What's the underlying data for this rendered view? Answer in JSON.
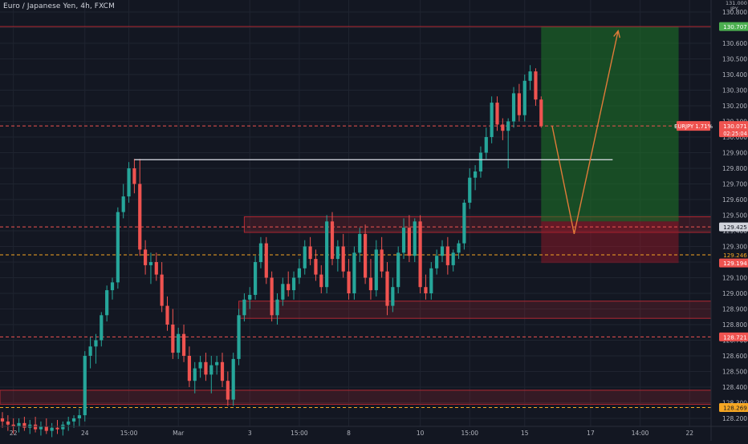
{
  "header": {
    "symbol_title": "Euro / Japanese Yen, 4h, FXCM",
    "currency": "JPY",
    "axis_top_label": "131.000"
  },
  "colors": {
    "background": "#131722",
    "grid": "#1f2430",
    "up": "#26a69a",
    "down": "#ef5350",
    "zone_fill": "rgba(178,40,51,0.22)",
    "zone_stroke": "#b22833",
    "projection": "#e07b39",
    "profit_fill": "rgba(30,120,40,0.55)",
    "loss_fill": "rgba(160,25,40,0.45)",
    "axis_text": "#b2b5be",
    "price_badge": "#ef5350",
    "target_badge": "#4caf50",
    "orange_badge": "#f5a623"
  },
  "chart_data": {
    "type": "candlestick",
    "title": "Euro / Japanese Yen, 4h, FXCM",
    "ylim": [
      128.15,
      131.05
    ],
    "y_ticks": [
      "128.200",
      "128.300",
      "128.400",
      "128.500",
      "128.600",
      "128.700",
      "128.800",
      "128.900",
      "129.000",
      "129.100",
      "129.200",
      "129.300",
      "129.400",
      "129.500",
      "129.600",
      "129.700",
      "129.800",
      "129.900",
      "130.000",
      "130.100",
      "130.200",
      "130.300",
      "130.400",
      "130.500",
      "130.600",
      "130.700",
      "130.800",
      "130.900"
    ],
    "x_ticks": [
      {
        "label": "22",
        "i": 2
      },
      {
        "label": "24",
        "i": 15
      },
      {
        "label": "15:00",
        "i": 23
      },
      {
        "label": "Mar",
        "i": 32
      },
      {
        "label": "3",
        "i": 45
      },
      {
        "label": "15:00",
        "i": 54
      },
      {
        "label": "8",
        "i": 63
      },
      {
        "label": "10",
        "i": 76
      },
      {
        "label": "15:00",
        "i": 85
      },
      {
        "label": "15",
        "i": 95
      },
      {
        "label": "17",
        "i": 107
      },
      {
        "label": "14:00",
        "i": 116
      },
      {
        "label": "22",
        "i": 125
      }
    ],
    "x_count": 130,
    "candles": [
      {
        "o": 128.2,
        "h": 128.24,
        "l": 128.14,
        "c": 128.18
      },
      {
        "o": 128.18,
        "h": 128.22,
        "l": 128.12,
        "c": 128.16
      },
      {
        "o": 128.16,
        "h": 128.2,
        "l": 128.1,
        "c": 128.15
      },
      {
        "o": 128.15,
        "h": 128.2,
        "l": 128.11,
        "c": 128.17
      },
      {
        "o": 128.17,
        "h": 128.21,
        "l": 128.12,
        "c": 128.14
      },
      {
        "o": 128.14,
        "h": 128.19,
        "l": 128.1,
        "c": 128.16
      },
      {
        "o": 128.16,
        "h": 128.21,
        "l": 128.11,
        "c": 128.13
      },
      {
        "o": 128.13,
        "h": 128.18,
        "l": 128.09,
        "c": 128.15
      },
      {
        "o": 128.15,
        "h": 128.2,
        "l": 128.1,
        "c": 128.12
      },
      {
        "o": 128.12,
        "h": 128.17,
        "l": 128.08,
        "c": 128.14
      },
      {
        "o": 128.14,
        "h": 128.19,
        "l": 128.1,
        "c": 128.13
      },
      {
        "o": 128.13,
        "h": 128.18,
        "l": 128.09,
        "c": 128.16
      },
      {
        "o": 128.16,
        "h": 128.21,
        "l": 128.12,
        "c": 128.18
      },
      {
        "o": 128.18,
        "h": 128.22,
        "l": 128.14,
        "c": 128.2
      },
      {
        "o": 128.2,
        "h": 128.26,
        "l": 128.15,
        "c": 128.22
      },
      {
        "o": 128.22,
        "h": 128.63,
        "l": 128.18,
        "c": 128.6
      },
      {
        "o": 128.6,
        "h": 128.72,
        "l": 128.52,
        "c": 128.66
      },
      {
        "o": 128.66,
        "h": 128.74,
        "l": 128.55,
        "c": 128.7
      },
      {
        "o": 128.7,
        "h": 128.88,
        "l": 128.66,
        "c": 128.86
      },
      {
        "o": 128.86,
        "h": 129.05,
        "l": 128.82,
        "c": 129.02
      },
      {
        "o": 129.02,
        "h": 129.1,
        "l": 128.96,
        "c": 129.07
      },
      {
        "o": 129.07,
        "h": 129.55,
        "l": 129.03,
        "c": 129.52
      },
      {
        "o": 129.52,
        "h": 129.7,
        "l": 129.48,
        "c": 129.62
      },
      {
        "o": 129.62,
        "h": 129.84,
        "l": 129.58,
        "c": 129.8
      },
      {
        "o": 129.8,
        "h": 129.86,
        "l": 129.64,
        "c": 129.7
      },
      {
        "o": 129.7,
        "h": 129.86,
        "l": 129.24,
        "c": 129.28
      },
      {
        "o": 129.28,
        "h": 129.34,
        "l": 129.12,
        "c": 129.18
      },
      {
        "o": 129.18,
        "h": 129.26,
        "l": 129.06,
        "c": 129.2
      },
      {
        "o": 129.2,
        "h": 129.26,
        "l": 129.08,
        "c": 129.12
      },
      {
        "o": 129.12,
        "h": 129.2,
        "l": 128.88,
        "c": 128.92
      },
      {
        "o": 128.92,
        "h": 128.98,
        "l": 128.76,
        "c": 128.8
      },
      {
        "o": 128.8,
        "h": 128.9,
        "l": 128.58,
        "c": 128.62
      },
      {
        "o": 128.62,
        "h": 128.78,
        "l": 128.58,
        "c": 128.74
      },
      {
        "o": 128.74,
        "h": 128.8,
        "l": 128.56,
        "c": 128.6
      },
      {
        "o": 128.6,
        "h": 128.66,
        "l": 128.4,
        "c": 128.44
      },
      {
        "o": 128.44,
        "h": 128.56,
        "l": 128.36,
        "c": 128.52
      },
      {
        "o": 128.52,
        "h": 128.6,
        "l": 128.46,
        "c": 128.56
      },
      {
        "o": 128.56,
        "h": 128.62,
        "l": 128.44,
        "c": 128.48
      },
      {
        "o": 128.48,
        "h": 128.6,
        "l": 128.36,
        "c": 128.54
      },
      {
        "o": 128.54,
        "h": 128.6,
        "l": 128.48,
        "c": 128.56
      },
      {
        "o": 128.56,
        "h": 128.62,
        "l": 128.4,
        "c": 128.44
      },
      {
        "o": 128.44,
        "h": 128.5,
        "l": 128.28,
        "c": 128.32
      },
      {
        "o": 128.32,
        "h": 128.62,
        "l": 128.28,
        "c": 128.58
      },
      {
        "o": 128.58,
        "h": 128.9,
        "l": 128.54,
        "c": 128.86
      },
      {
        "o": 128.86,
        "h": 129.0,
        "l": 128.82,
        "c": 128.96
      },
      {
        "o": 128.96,
        "h": 129.04,
        "l": 128.9,
        "c": 128.99
      },
      {
        "o": 128.99,
        "h": 129.24,
        "l": 128.96,
        "c": 129.2
      },
      {
        "o": 129.2,
        "h": 129.36,
        "l": 129.16,
        "c": 129.32
      },
      {
        "o": 129.32,
        "h": 129.36,
        "l": 129.06,
        "c": 129.1
      },
      {
        "o": 129.1,
        "h": 129.14,
        "l": 128.82,
        "c": 128.86
      },
      {
        "o": 128.86,
        "h": 129.0,
        "l": 128.8,
        "c": 128.96
      },
      {
        "o": 128.96,
        "h": 129.1,
        "l": 128.92,
        "c": 129.06
      },
      {
        "o": 129.06,
        "h": 129.14,
        "l": 128.98,
        "c": 129.02
      },
      {
        "o": 129.02,
        "h": 129.14,
        "l": 128.96,
        "c": 129.1
      },
      {
        "o": 129.1,
        "h": 129.22,
        "l": 129.06,
        "c": 129.16
      },
      {
        "o": 129.16,
        "h": 129.34,
        "l": 129.12,
        "c": 129.3
      },
      {
        "o": 129.3,
        "h": 129.36,
        "l": 129.18,
        "c": 129.22
      },
      {
        "o": 129.22,
        "h": 129.28,
        "l": 129.08,
        "c": 129.12
      },
      {
        "o": 129.12,
        "h": 129.18,
        "l": 129.0,
        "c": 129.04
      },
      {
        "o": 129.04,
        "h": 129.5,
        "l": 129.0,
        "c": 129.46
      },
      {
        "o": 129.46,
        "h": 129.52,
        "l": 129.18,
        "c": 129.22
      },
      {
        "o": 129.22,
        "h": 129.34,
        "l": 129.14,
        "c": 129.3
      },
      {
        "o": 129.3,
        "h": 129.38,
        "l": 129.1,
        "c": 129.14
      },
      {
        "o": 129.14,
        "h": 129.22,
        "l": 128.96,
        "c": 129.0
      },
      {
        "o": 129.0,
        "h": 129.3,
        "l": 128.96,
        "c": 129.26
      },
      {
        "o": 129.26,
        "h": 129.42,
        "l": 129.2,
        "c": 129.38
      },
      {
        "o": 129.38,
        "h": 129.44,
        "l": 129.06,
        "c": 129.1
      },
      {
        "o": 129.1,
        "h": 129.22,
        "l": 128.96,
        "c": 129.02
      },
      {
        "o": 129.02,
        "h": 129.34,
        "l": 128.98,
        "c": 129.28
      },
      {
        "o": 129.28,
        "h": 129.36,
        "l": 129.1,
        "c": 129.14
      },
      {
        "o": 129.14,
        "h": 129.2,
        "l": 128.86,
        "c": 128.92
      },
      {
        "o": 128.92,
        "h": 129.1,
        "l": 128.88,
        "c": 129.04
      },
      {
        "o": 129.04,
        "h": 129.3,
        "l": 129.0,
        "c": 129.26
      },
      {
        "o": 129.26,
        "h": 129.48,
        "l": 129.22,
        "c": 129.42
      },
      {
        "o": 129.42,
        "h": 129.5,
        "l": 129.2,
        "c": 129.24
      },
      {
        "o": 129.24,
        "h": 129.48,
        "l": 129.2,
        "c": 129.46
      },
      {
        "o": 129.46,
        "h": 129.5,
        "l": 129.0,
        "c": 129.04
      },
      {
        "o": 129.04,
        "h": 129.12,
        "l": 128.96,
        "c": 129.0
      },
      {
        "o": 129.0,
        "h": 129.2,
        "l": 128.96,
        "c": 129.16
      },
      {
        "o": 129.16,
        "h": 129.28,
        "l": 129.12,
        "c": 129.24
      },
      {
        "o": 129.24,
        "h": 129.34,
        "l": 129.2,
        "c": 129.3
      },
      {
        "o": 129.3,
        "h": 129.36,
        "l": 129.12,
        "c": 129.18
      },
      {
        "o": 129.18,
        "h": 129.28,
        "l": 129.14,
        "c": 129.26
      },
      {
        "o": 129.26,
        "h": 129.34,
        "l": 129.22,
        "c": 129.32
      },
      {
        "o": 129.32,
        "h": 129.6,
        "l": 129.28,
        "c": 129.58
      },
      {
        "o": 129.58,
        "h": 129.8,
        "l": 129.54,
        "c": 129.74
      },
      {
        "o": 129.74,
        "h": 129.82,
        "l": 129.66,
        "c": 129.78
      },
      {
        "o": 129.78,
        "h": 129.94,
        "l": 129.74,
        "c": 129.9
      },
      {
        "o": 129.9,
        "h": 130.06,
        "l": 129.86,
        "c": 130.0
      },
      {
        "o": 130.0,
        "h": 130.26,
        "l": 129.96,
        "c": 130.22
      },
      {
        "o": 130.22,
        "h": 130.26,
        "l": 130.04,
        "c": 130.08
      },
      {
        "o": 130.08,
        "h": 130.12,
        "l": 129.98,
        "c": 130.04
      },
      {
        "o": 130.04,
        "h": 130.12,
        "l": 129.8,
        "c": 130.1
      },
      {
        "o": 130.1,
        "h": 130.32,
        "l": 130.06,
        "c": 130.28
      },
      {
        "o": 130.28,
        "h": 130.34,
        "l": 130.1,
        "c": 130.14
      },
      {
        "o": 130.14,
        "h": 130.4,
        "l": 130.1,
        "c": 130.36
      },
      {
        "o": 130.36,
        "h": 130.46,
        "l": 130.3,
        "c": 130.42
      },
      {
        "o": 130.42,
        "h": 130.44,
        "l": 130.2,
        "c": 130.24
      },
      {
        "o": 130.24,
        "h": 130.26,
        "l": 130.06,
        "c": 130.07
      }
    ],
    "levels": [
      {
        "name": "target-line",
        "price": 130.707,
        "style": "solid",
        "color": "#b22833"
      },
      {
        "name": "current-price-line",
        "price": 130.071,
        "style": "dashed",
        "color": "#ef5350"
      },
      {
        "name": "support-line-129425",
        "price": 129.425,
        "style": "dashed",
        "color": "#ef5350"
      },
      {
        "name": "entry-line-129246",
        "price": 129.246,
        "style": "dashed",
        "color": "#f5a623"
      },
      {
        "name": "stop-line-128721",
        "price": 128.721,
        "style": "dashed",
        "color": "#ef5350"
      },
      {
        "name": "support-line-128269",
        "price": 128.269,
        "style": "dashed",
        "color": "#f5a623"
      }
    ],
    "resistance_line": {
      "price": 129.855,
      "from_i": 24,
      "to_i": 111
    },
    "zones": [
      {
        "name": "zone-upper",
        "top": 129.49,
        "bottom": 129.39,
        "from_i": 44,
        "to_i": 130
      },
      {
        "name": "zone-middle",
        "top": 128.95,
        "bottom": 128.84,
        "from_i": 43,
        "to_i": 130
      },
      {
        "name": "zone-lower",
        "top": 128.38,
        "bottom": 128.29,
        "from_i": 0,
        "to_i": 130
      }
    ],
    "position": {
      "from_i": 98,
      "to_i": 123,
      "target": 130.707,
      "entry": 129.46,
      "stop": 129.194
    },
    "projection": [
      {
        "i": 100,
        "price": 130.07
      },
      {
        "i": 104,
        "price": 129.38
      },
      {
        "i": 112,
        "price": 130.68
      }
    ],
    "price_labels": [
      {
        "name": "badge-130707",
        "text": "130.707",
        "price": 130.707,
        "bg": "#4caf50",
        "fg": "#ffffff"
      },
      {
        "name": "badge-130071",
        "text": "130.071",
        "price": 130.071,
        "bg": "#ef5350",
        "fg": "#ffffff",
        "sub": "02:25:04"
      },
      {
        "name": "badge-129425",
        "text": "129.425",
        "price": 129.425,
        "bg": "#d1d4dc",
        "fg": "#131722"
      },
      {
        "name": "badge-129246",
        "text": "129.246",
        "price": 129.246,
        "bg": "#131722",
        "fg": "#f5a623"
      },
      {
        "name": "badge-129194",
        "text": "129.194",
        "price": 129.194,
        "bg": "#ef5350",
        "fg": "#ffffff"
      },
      {
        "name": "badge-128721",
        "text": "128.721",
        "price": 128.721,
        "bg": "#ef5350",
        "fg": "#ffffff"
      },
      {
        "name": "badge-128269",
        "text": "128.269",
        "price": 128.269,
        "bg": "#f5a623",
        "fg": "#131722"
      }
    ],
    "symbol_label": {
      "text": "EURJPY 1.71%",
      "price": 130.071
    }
  }
}
